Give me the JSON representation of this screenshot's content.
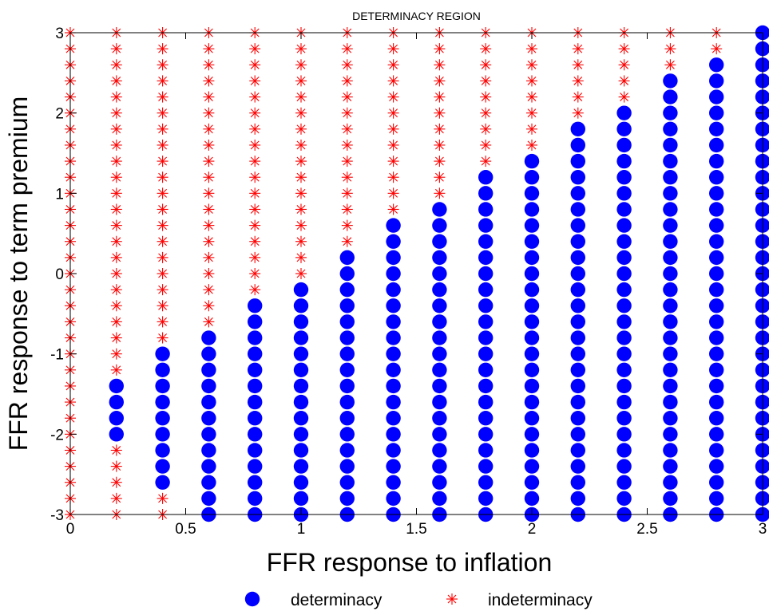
{
  "chart_data": {
    "type": "scatter",
    "title": "DETERMINACY REGION",
    "xlabel": "FFR response to inflation",
    "ylabel": "FFR response to term premium",
    "xlim": [
      0,
      3
    ],
    "ylim": [
      -3,
      3
    ],
    "xticks": [
      0,
      0.5,
      1,
      1.5,
      2,
      2.5,
      3
    ],
    "xtick_labels": [
      "0",
      "0.5",
      "1",
      "1.5",
      "2",
      "2.5",
      "3"
    ],
    "yticks": [
      -3,
      -2,
      -1,
      0,
      1,
      2,
      3
    ],
    "ytick_labels": [
      "-3",
      "-2",
      "-1",
      "0",
      "1",
      "2",
      "3"
    ],
    "grid": false,
    "legend_placement": "bottom",
    "x_values": [
      0,
      0.2,
      0.4,
      0.6,
      0.8,
      1.0,
      1.2,
      1.4,
      1.6,
      1.8,
      2.0,
      2.2,
      2.4,
      2.6,
      2.8,
      3.0
    ],
    "y_step": 0.2,
    "series": [
      {
        "name": "determinacy",
        "marker": "filled-circle",
        "color": "#0000ff",
        "columns": [
          {
            "x": 0.2,
            "y_min": -2.0,
            "y_max": -1.4
          },
          {
            "x": 0.4,
            "y_min": -2.6,
            "y_max": -1.0
          },
          {
            "x": 0.6,
            "y_min": -3.0,
            "y_max": -0.8
          },
          {
            "x": 0.8,
            "y_min": -3.0,
            "y_max": -0.4
          },
          {
            "x": 1.0,
            "y_min": -3.0,
            "y_max": -0.2
          },
          {
            "x": 1.2,
            "y_min": -3.0,
            "y_max": 0.2
          },
          {
            "x": 1.4,
            "y_min": -3.0,
            "y_max": 0.6
          },
          {
            "x": 1.6,
            "y_min": -3.0,
            "y_max": 0.8
          },
          {
            "x": 1.8,
            "y_min": -3.0,
            "y_max": 1.2
          },
          {
            "x": 2.0,
            "y_min": -3.0,
            "y_max": 1.4
          },
          {
            "x": 2.2,
            "y_min": -3.0,
            "y_max": 1.8
          },
          {
            "x": 2.4,
            "y_min": -3.0,
            "y_max": 2.0
          },
          {
            "x": 2.6,
            "y_min": -3.0,
            "y_max": 2.4
          },
          {
            "x": 2.8,
            "y_min": -3.0,
            "y_max": 2.6
          },
          {
            "x": 3.0,
            "y_min": -3.0,
            "y_max": 3.0
          }
        ]
      },
      {
        "name": "indeterminacy",
        "marker": "asterisk",
        "color": "#ff0000",
        "note_rule": "all grid points not in determinacy"
      }
    ]
  }
}
